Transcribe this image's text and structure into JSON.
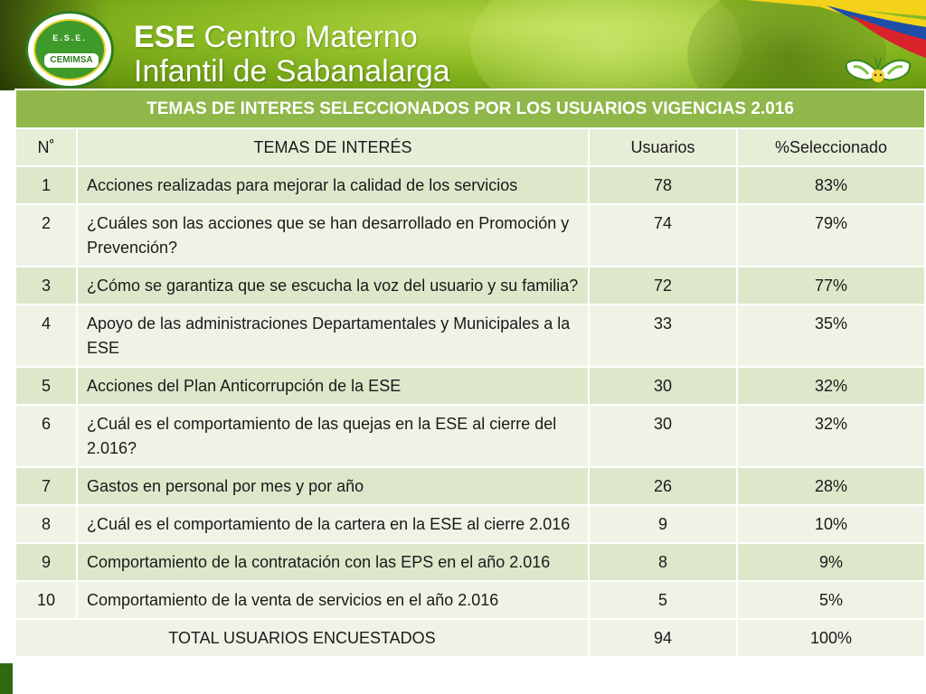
{
  "header": {
    "logo": {
      "top_text": "E.S.E.",
      "mid_text": "CEMIMSA"
    },
    "brand_bold": "ESE",
    "brand_line1_rest": "Centro Materno",
    "brand_line2": "Infantil de Sabanalarga"
  },
  "table": {
    "title": "TEMAS DE INTERES SELECCIONADOS POR LOS USUARIOS VIGENCIAS 2.016",
    "columns": [
      "N˚",
      "TEMAS DE INTERÉS",
      "Usuarios",
      "%Seleccionado"
    ],
    "rows": [
      {
        "n": "1",
        "tema": "Acciones realizadas para mejorar la calidad de los servicios",
        "usuarios": "78",
        "pct": "83%"
      },
      {
        "n": "2",
        "tema": "¿Cuáles son las acciones que se han desarrollado en Promoción y Prevención?",
        "usuarios": "74",
        "pct": "79%"
      },
      {
        "n": "3",
        "tema": "¿Cómo se garantiza que se escucha la voz del usuario y su familia?",
        "usuarios": "72",
        "pct": "77%"
      },
      {
        "n": "4",
        "tema": "Apoyo de las administraciones Departamentales y Municipales a la ESE",
        "usuarios": "33",
        "pct": "35%"
      },
      {
        "n": "5",
        "tema": "Acciones del Plan Anticorrupción de la ESE",
        "usuarios": "30",
        "pct": "32%"
      },
      {
        "n": "6",
        "tema": "¿Cuál es  el comportamiento  de las  quejas en la ESE  al cierre del 2.016?",
        "usuarios": "30",
        "pct": "32%"
      },
      {
        "n": "7",
        "tema": "Gastos en personal por mes y por año",
        "usuarios": "26",
        "pct": "28%"
      },
      {
        "n": "8",
        "tema": "¿Cuál es el comportamiento de la cartera en la ESE al cierre  2.016",
        "usuarios": "9",
        "pct": "10%"
      },
      {
        "n": "9",
        "tema": "Comportamiento de la contratación con las EPS en el año 2.016",
        "usuarios": "8",
        "pct": "9%"
      },
      {
        "n": "10",
        "tema": "Comportamiento de la venta de servicios en el año 2.016",
        "usuarios": "5",
        "pct": "5%"
      }
    ],
    "total": {
      "label": "TOTAL USUARIOS ENCUESTADOS",
      "usuarios": "94",
      "pct": "100%"
    }
  },
  "colors": {
    "title_bg": "#8fb74a",
    "row_odd": "#dde8cb",
    "row_even": "#eef3e6",
    "banner_green": "#8fbe26"
  },
  "icons": [
    "logo-emblem",
    "colombia-flag-stripes",
    "butterfly-icon"
  ]
}
